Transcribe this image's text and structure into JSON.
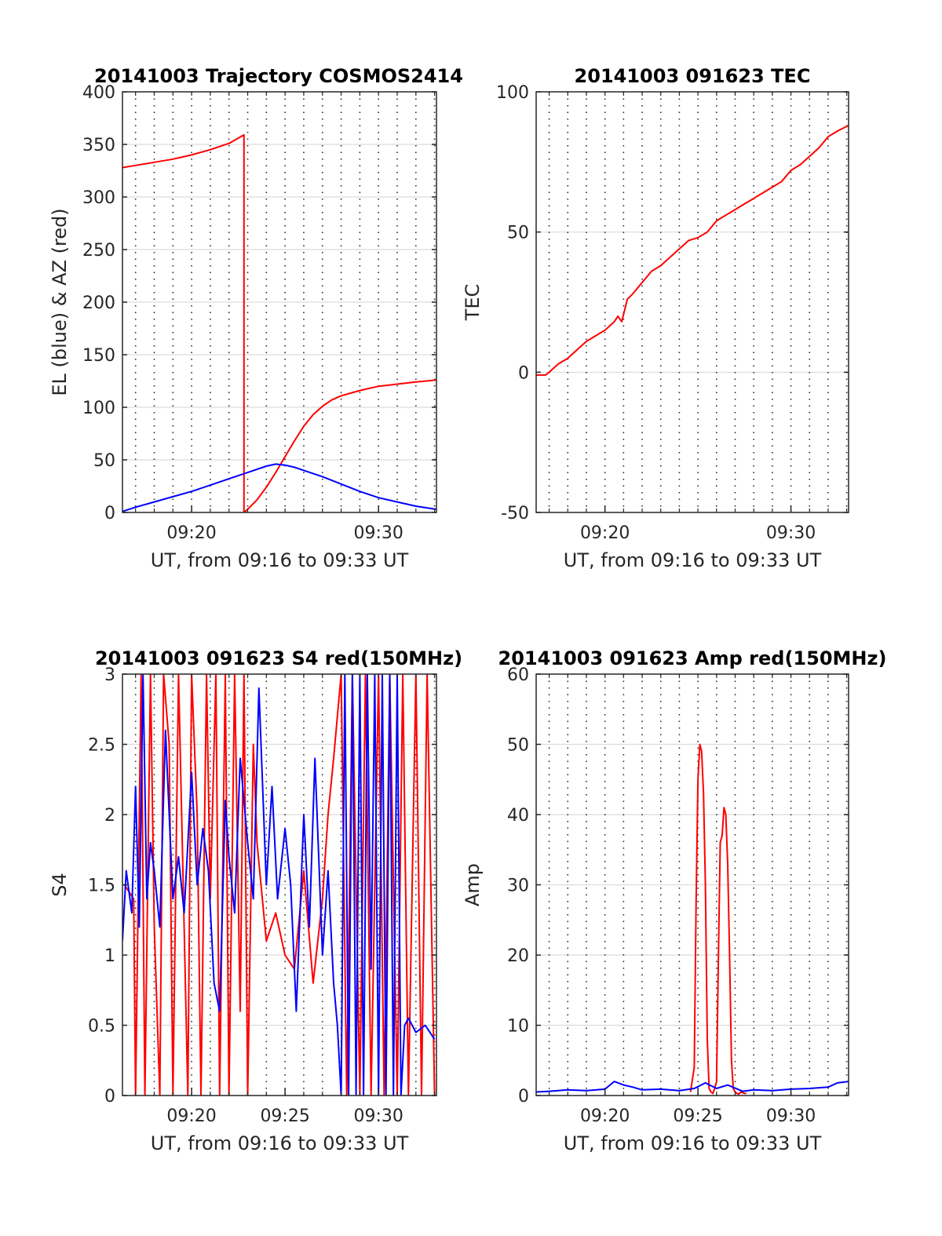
{
  "figure": {
    "colors": {
      "red": "#ff0000",
      "blue": "#0000ff",
      "axis": "#262626",
      "grid": "#262626"
    }
  },
  "chart_data": [
    {
      "id": "trajectory",
      "type": "line",
      "title": "20141003 Trajectory COSMOS2414",
      "xlabel": "UT, from 09:16 to 09:33 UT",
      "ylabel": "EL (blue) & AZ (red)",
      "xlim": [
        16.3,
        33.1
      ],
      "ylim": [
        0,
        400
      ],
      "yticks": [
        0,
        50,
        100,
        150,
        200,
        250,
        300,
        350,
        400
      ],
      "xticks": [
        {
          "value": 20,
          "label": "09:20"
        },
        {
          "value": 30,
          "label": "09:30"
        }
      ],
      "minor_grid_x": [
        17,
        18,
        19,
        20,
        21,
        22,
        23,
        24,
        25,
        26,
        27,
        28,
        29,
        30,
        31,
        32,
        33
      ],
      "series": [
        {
          "name": "AZ",
          "color": "red",
          "x": [
            16.3,
            17,
            18,
            19,
            20,
            21,
            22,
            22.8,
            22.801,
            23.0,
            23.5,
            24.0,
            24.5,
            25.0,
            25.5,
            26.0,
            26.5,
            27.0,
            27.5,
            28.0,
            29.0,
            30.0,
            31.0,
            32.0,
            33.1
          ],
          "y": [
            328,
            330,
            333,
            336,
            340,
            345,
            351,
            359,
            0,
            3,
            12,
            24,
            38,
            53,
            68,
            82,
            93,
            101,
            107,
            111,
            116,
            120,
            122,
            124,
            126
          ]
        },
        {
          "name": "EL",
          "color": "blue",
          "x": [
            16.3,
            17,
            18,
            19,
            20,
            21,
            22,
            23,
            24,
            24.5,
            25,
            25.5,
            26,
            27,
            28,
            29,
            30,
            31,
            32,
            33.1
          ],
          "y": [
            1,
            5,
            10,
            15,
            20,
            26,
            32,
            38,
            44,
            46,
            45,
            43,
            40,
            34,
            27,
            20,
            14,
            10,
            6,
            3
          ]
        }
      ]
    },
    {
      "id": "tec",
      "type": "line",
      "title": "20141003 091623 TEC",
      "xlabel": "UT, from 09:16 to 09:33 UT",
      "ylabel": "TEC",
      "xlim": [
        16.3,
        33.1
      ],
      "ylim": [
        -50,
        100
      ],
      "yticks": [
        -50,
        0,
        50,
        100
      ],
      "xticks": [
        {
          "value": 20,
          "label": "09:20"
        },
        {
          "value": 30,
          "label": "09:30"
        }
      ],
      "minor_grid_x": [
        17,
        18,
        19,
        20,
        21,
        22,
        23,
        24,
        25,
        26,
        27,
        28,
        29,
        30,
        31,
        32,
        33
      ],
      "series": [
        {
          "name": "TEC",
          "color": "red",
          "x": [
            16.3,
            16.8,
            17.0,
            17.5,
            18.0,
            18.5,
            19.0,
            19.5,
            20.0,
            20.5,
            20.7,
            20.9,
            21.2,
            21.5,
            22.0,
            22.5,
            23.0,
            23.5,
            24.0,
            24.5,
            25.0,
            25.5,
            26.0,
            26.5,
            27.0,
            27.5,
            28.0,
            28.5,
            29.0,
            29.5,
            30.0,
            30.5,
            31.0,
            31.5,
            32.0,
            32.5,
            33.1
          ],
          "y": [
            -1,
            -1,
            0,
            3,
            5,
            8,
            11,
            13,
            15,
            18,
            20,
            18,
            26,
            28,
            32,
            36,
            38,
            41,
            44,
            47,
            48,
            50,
            54,
            56,
            58,
            60,
            62,
            64,
            66,
            68,
            72,
            74,
            77,
            80,
            84,
            86,
            88
          ]
        }
      ]
    },
    {
      "id": "s4",
      "type": "line",
      "title": "20141003 091623 S4 red(150MHz)",
      "xlabel": "UT, from 09:16 to 09:33 UT",
      "ylabel": "S4",
      "xlim": [
        16.3,
        33.1
      ],
      "ylim": [
        0,
        3
      ],
      "yticks": [
        0,
        0.5,
        1,
        1.5,
        2,
        2.5,
        3
      ],
      "xticks": [
        {
          "value": 20,
          "label": "09:20"
        },
        {
          "value": 25,
          "label": "09:25"
        },
        {
          "value": 30,
          "label": "09:30"
        }
      ],
      "minor_grid_x": [
        17,
        18,
        19,
        20,
        21,
        22,
        23,
        24,
        25,
        26,
        27,
        28,
        29,
        30,
        31,
        32,
        33
      ],
      "series": [
        {
          "name": "S4 red",
          "color": "red",
          "x": [
            16.4,
            16.9,
            17.0,
            17.3,
            17.5,
            17.8,
            18.0,
            18.3,
            18.5,
            18.8,
            19.0,
            19.3,
            19.5,
            19.8,
            20.0,
            20.3,
            20.5,
            20.8,
            21.0,
            21.3,
            21.5,
            21.8,
            22.0,
            22.3,
            22.6,
            22.8,
            23.0,
            23.3,
            23.5,
            24.0,
            24.5,
            25.0,
            25.5,
            26.0,
            26.5,
            27.0,
            27.3,
            27.6,
            28.0,
            28.3,
            28.6,
            29.0,
            29.3,
            29.6,
            30.0,
            30.3,
            30.6,
            31.0,
            31.3,
            31.6,
            32.0,
            32.3,
            32.6,
            33.0
          ],
          "y": [
            1.5,
            1.4,
            0,
            3,
            0,
            3,
            1.2,
            0,
            3,
            2.5,
            0,
            3,
            1.8,
            0,
            3,
            2,
            0,
            3,
            1.4,
            3,
            0,
            3,
            0,
            3,
            0.6,
            3,
            0,
            2.5,
            1.8,
            1.1,
            1.3,
            1.0,
            0.9,
            1.6,
            0.8,
            1.4,
            2.0,
            2.4,
            3,
            0,
            3,
            0,
            3,
            0,
            3,
            0,
            3,
            0,
            3,
            0,
            3,
            0,
            3,
            0
          ]
        },
        {
          "name": "S4 blue",
          "color": "blue",
          "x": [
            16.3,
            16.5,
            16.8,
            17.0,
            17.2,
            17.4,
            17.6,
            17.8,
            18.0,
            18.3,
            18.6,
            19.0,
            19.3,
            19.6,
            20.0,
            20.3,
            20.6,
            20.9,
            21.2,
            21.5,
            21.8,
            22.0,
            22.3,
            22.6,
            23.0,
            23.3,
            23.6,
            24.0,
            24.3,
            24.6,
            25.0,
            25.3,
            25.6,
            26.0,
            26.3,
            26.6,
            27.0,
            27.3,
            27.6,
            27.8,
            28.0,
            28.2,
            28.4,
            28.6,
            28.8,
            29.0,
            29.2,
            29.4,
            29.6,
            29.8,
            30.0,
            30.2,
            30.4,
            30.6,
            30.8,
            31.0,
            31.2,
            31.4,
            31.6,
            32.0,
            32.5,
            33.0
          ],
          "y": [
            1.1,
            1.6,
            1.3,
            2.2,
            1.2,
            3,
            1.4,
            1.8,
            1.6,
            1.2,
            2.6,
            1.4,
            1.7,
            1.3,
            2.3,
            1.5,
            1.9,
            1.6,
            0.8,
            0.6,
            2.1,
            1.7,
            1.3,
            2.4,
            1.8,
            1.4,
            2.9,
            1.5,
            2.2,
            1.4,
            1.9,
            1.5,
            0.6,
            2.0,
            1.2,
            2.4,
            1.0,
            1.6,
            0.8,
            0.5,
            0,
            3,
            0,
            3,
            0,
            3,
            0,
            3,
            0.9,
            3,
            0,
            3,
            0,
            3,
            0,
            3,
            0,
            0.5,
            0.55,
            0.45,
            0.5,
            0.4
          ]
        }
      ]
    },
    {
      "id": "amp",
      "type": "line",
      "title": "20141003 091623 Amp red(150MHz)",
      "xlabel": "UT, from 09:16 to 09:33 UT",
      "ylabel": "Amp",
      "xlim": [
        16.3,
        33.1
      ],
      "ylim": [
        0,
        60
      ],
      "yticks": [
        0,
        10,
        20,
        30,
        40,
        50,
        60
      ],
      "xticks": [
        {
          "value": 20,
          "label": "09:20"
        },
        {
          "value": 25,
          "label": "09:25"
        },
        {
          "value": 30,
          "label": "09:30"
        }
      ],
      "minor_grid_x": [
        17,
        18,
        19,
        20,
        21,
        22,
        23,
        24,
        25,
        26,
        27,
        28,
        29,
        30,
        31,
        32,
        33
      ],
      "series": [
        {
          "name": "Amp red",
          "color": "red",
          "x": [
            24.6,
            24.8,
            24.9,
            25.0,
            25.1,
            25.2,
            25.3,
            25.4,
            25.5,
            25.6,
            25.7,
            25.8,
            25.9,
            26.0,
            26.1,
            26.2,
            26.3,
            26.4,
            26.5,
            26.6,
            26.7,
            26.8,
            26.9,
            27.0,
            27.1,
            27.2,
            27.3,
            27.4,
            27.5,
            27.6
          ],
          "y": [
            0.5,
            4,
            27,
            45,
            50,
            49,
            43,
            30,
            8,
            1,
            0.5,
            0.3,
            1,
            2,
            20,
            36,
            37,
            41,
            40,
            33,
            20,
            5,
            1,
            0.5,
            0.3,
            0.2,
            0.5,
            0.4,
            0.3,
            0.3
          ]
        },
        {
          "name": "Amp blue",
          "color": "blue",
          "x": [
            16.3,
            17.0,
            18.0,
            19.0,
            20.0,
            20.5,
            21.0,
            21.5,
            22.0,
            23.0,
            24.0,
            24.8,
            25.4,
            26.0,
            26.6,
            27.4,
            28.0,
            29.0,
            30.0,
            31.0,
            32.0,
            32.5,
            33.1
          ],
          "y": [
            0.5,
            0.6,
            0.8,
            0.7,
            0.9,
            2.0,
            1.5,
            1.2,
            0.8,
            0.9,
            0.7,
            1.0,
            1.8,
            1.0,
            1.5,
            0.6,
            0.8,
            0.7,
            0.9,
            1.0,
            1.2,
            1.8,
            2.0
          ]
        }
      ]
    }
  ]
}
